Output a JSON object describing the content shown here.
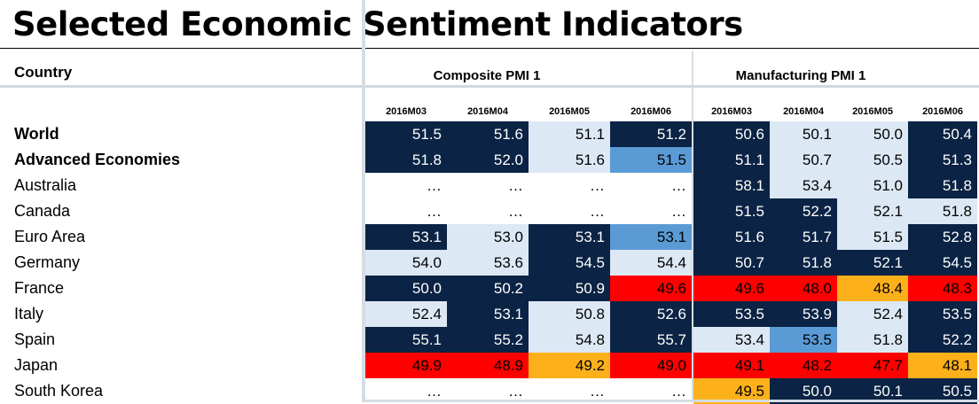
{
  "title": "Selected Economic Sentiment Indicators",
  "country_header": "Country",
  "groups": [
    {
      "title": "Composite PMI 1"
    },
    {
      "title": "Manufacturing PMI 1"
    }
  ],
  "periods": [
    "2016M03",
    "2016M04",
    "2016M05",
    "2016M06",
    "2016M03",
    "2016M04",
    "2016M05",
    "2016M06"
  ],
  "colors": {
    "dark": "#0b2344",
    "light": "#dce8f4",
    "blue": "#5b9bd5",
    "red": "#ff0000",
    "orange": "#fcb11b",
    "none": "#ffffff"
  },
  "rows": [
    {
      "country": "World",
      "bold": true,
      "cells": [
        {
          "v": "51.5",
          "c": "dark"
        },
        {
          "v": "51.6",
          "c": "dark"
        },
        {
          "v": "51.1",
          "c": "light"
        },
        {
          "v": "51.2",
          "c": "dark"
        },
        {
          "v": "50.6",
          "c": "dark"
        },
        {
          "v": "50.1",
          "c": "light"
        },
        {
          "v": "50.0",
          "c": "light"
        },
        {
          "v": "50.4",
          "c": "dark"
        }
      ]
    },
    {
      "country": "Advanced Economies",
      "bold": true,
      "cells": [
        {
          "v": "51.8",
          "c": "dark"
        },
        {
          "v": "52.0",
          "c": "dark"
        },
        {
          "v": "51.6",
          "c": "light"
        },
        {
          "v": "51.5",
          "c": "blue"
        },
        {
          "v": "51.1",
          "c": "dark"
        },
        {
          "v": "50.7",
          "c": "light"
        },
        {
          "v": "50.5",
          "c": "light"
        },
        {
          "v": "51.3",
          "c": "dark"
        }
      ]
    },
    {
      "country": "Australia",
      "bold": false,
      "cells": [
        {
          "v": "…",
          "c": "none"
        },
        {
          "v": "…",
          "c": "none"
        },
        {
          "v": "…",
          "c": "none"
        },
        {
          "v": "…",
          "c": "none"
        },
        {
          "v": "58.1",
          "c": "dark"
        },
        {
          "v": "53.4",
          "c": "light"
        },
        {
          "v": "51.0",
          "c": "light"
        },
        {
          "v": "51.8",
          "c": "dark"
        }
      ]
    },
    {
      "country": "Canada",
      "bold": false,
      "cells": [
        {
          "v": "…",
          "c": "none"
        },
        {
          "v": "…",
          "c": "none"
        },
        {
          "v": "…",
          "c": "none"
        },
        {
          "v": "…",
          "c": "none"
        },
        {
          "v": "51.5",
          "c": "dark"
        },
        {
          "v": "52.2",
          "c": "dark"
        },
        {
          "v": "52.1",
          "c": "light"
        },
        {
          "v": "51.8",
          "c": "light"
        }
      ]
    },
    {
      "country": "Euro Area",
      "bold": false,
      "cells": [
        {
          "v": "53.1",
          "c": "dark"
        },
        {
          "v": "53.0",
          "c": "light"
        },
        {
          "v": "53.1",
          "c": "dark"
        },
        {
          "v": "53.1",
          "c": "blue"
        },
        {
          "v": "51.6",
          "c": "dark"
        },
        {
          "v": "51.7",
          "c": "dark"
        },
        {
          "v": "51.5",
          "c": "light"
        },
        {
          "v": "52.8",
          "c": "dark"
        }
      ]
    },
    {
      "country": "Germany",
      "bold": false,
      "cells": [
        {
          "v": "54.0",
          "c": "light"
        },
        {
          "v": "53.6",
          "c": "light"
        },
        {
          "v": "54.5",
          "c": "dark"
        },
        {
          "v": "54.4",
          "c": "light"
        },
        {
          "v": "50.7",
          "c": "dark"
        },
        {
          "v": "51.8",
          "c": "dark"
        },
        {
          "v": "52.1",
          "c": "dark"
        },
        {
          "v": "54.5",
          "c": "dark"
        }
      ]
    },
    {
      "country": "France",
      "bold": false,
      "cells": [
        {
          "v": "50.0",
          "c": "dark"
        },
        {
          "v": "50.2",
          "c": "dark"
        },
        {
          "v": "50.9",
          "c": "dark"
        },
        {
          "v": "49.6",
          "c": "red"
        },
        {
          "v": "49.6",
          "c": "red"
        },
        {
          "v": "48.0",
          "c": "red"
        },
        {
          "v": "48.4",
          "c": "orange"
        },
        {
          "v": "48.3",
          "c": "red"
        }
      ]
    },
    {
      "country": "Italy",
      "bold": false,
      "cells": [
        {
          "v": "52.4",
          "c": "light"
        },
        {
          "v": "53.1",
          "c": "dark"
        },
        {
          "v": "50.8",
          "c": "light"
        },
        {
          "v": "52.6",
          "c": "dark"
        },
        {
          "v": "53.5",
          "c": "dark"
        },
        {
          "v": "53.9",
          "c": "dark"
        },
        {
          "v": "52.4",
          "c": "light"
        },
        {
          "v": "53.5",
          "c": "dark"
        }
      ]
    },
    {
      "country": "Spain",
      "bold": false,
      "cells": [
        {
          "v": "55.1",
          "c": "dark"
        },
        {
          "v": "55.2",
          "c": "dark"
        },
        {
          "v": "54.8",
          "c": "light"
        },
        {
          "v": "55.7",
          "c": "dark"
        },
        {
          "v": "53.4",
          "c": "light"
        },
        {
          "v": "53.5",
          "c": "blue"
        },
        {
          "v": "51.8",
          "c": "light"
        },
        {
          "v": "52.2",
          "c": "dark"
        }
      ]
    },
    {
      "country": "Japan",
      "bold": false,
      "cells": [
        {
          "v": "49.9",
          "c": "red"
        },
        {
          "v": "48.9",
          "c": "red"
        },
        {
          "v": "49.2",
          "c": "orange"
        },
        {
          "v": "49.0",
          "c": "red"
        },
        {
          "v": "49.1",
          "c": "red"
        },
        {
          "v": "48.2",
          "c": "red"
        },
        {
          "v": "47.7",
          "c": "red"
        },
        {
          "v": "48.1",
          "c": "orange"
        }
      ]
    },
    {
      "country": "South Korea",
      "bold": false,
      "cells": [
        {
          "v": "…",
          "c": "none"
        },
        {
          "v": "…",
          "c": "none"
        },
        {
          "v": "…",
          "c": "none"
        },
        {
          "v": "…",
          "c": "none"
        },
        {
          "v": "49.5",
          "c": "orange"
        },
        {
          "v": "50.0",
          "c": "dark"
        },
        {
          "v": "50.1",
          "c": "dark"
        },
        {
          "v": "50.5",
          "c": "dark"
        }
      ]
    }
  ]
}
